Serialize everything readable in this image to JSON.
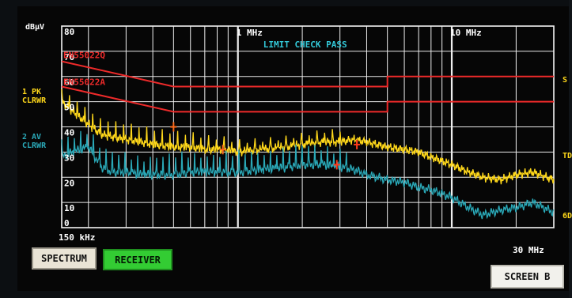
{
  "axis": {
    "unit": "dBμV",
    "x_start": "150 kHz",
    "x_end": "30 MHz",
    "y_ticks": [
      "80",
      "70",
      "60",
      "50",
      "40",
      "30",
      "20",
      "10",
      "0"
    ],
    "x_tick_labels": [
      {
        "freq_mhz": 1,
        "text": "1 MHz"
      },
      {
        "freq_mhz": 10,
        "text": "10 MHz"
      }
    ],
    "x_range_mhz": [
      0.15,
      30
    ],
    "y_range": [
      0,
      80
    ],
    "x_scale": "log",
    "grid": true
  },
  "status": {
    "text": "LIMIT CHECK  PASS",
    "color": "#33c8d8"
  },
  "limits": [
    {
      "name": "EN55022Q",
      "color": "#ee2a2a",
      "points": [
        [
          0.15,
          66
        ],
        [
          0.5,
          56
        ],
        [
          5,
          56
        ],
        [
          5,
          60
        ],
        [
          30,
          60
        ]
      ]
    },
    {
      "name": "EN55022A",
      "color": "#ee2a2a",
      "points": [
        [
          0.15,
          56
        ],
        [
          0.5,
          46
        ],
        [
          5,
          46
        ],
        [
          5,
          50
        ],
        [
          30,
          50
        ]
      ]
    }
  ],
  "traces": [
    {
      "label_line1": "1 PK",
      "label_line2": "CLRWR",
      "color": "#ffd81a"
    },
    {
      "label_line1": "2 AV",
      "label_line2": "CLRWR",
      "color": "#2aa9b8"
    }
  ],
  "side_marks": [
    "S",
    "TD",
    "6D"
  ],
  "buttons": {
    "spectrum": "SPECTRUM",
    "receiver": "RECEIVER",
    "screen_b": "SCREEN B"
  },
  "chart_data": {
    "type": "line",
    "title": "LIMIT CHECK  PASS",
    "xlabel": "",
    "ylabel": "dBμV",
    "x_scale": "log",
    "xlim": [
      0.15,
      30
    ],
    "ylim": [
      0,
      80
    ],
    "grid": true,
    "series": [
      {
        "name": "1 PK CLRWR",
        "color": "#ffd81a",
        "x": [
          0.15,
          0.17,
          0.2,
          0.23,
          0.26,
          0.3,
          0.35,
          0.4,
          0.5,
          0.6,
          0.7,
          0.85,
          1.0,
          1.3,
          1.7,
          2.0,
          2.5,
          3.0,
          3.5,
          4.0,
          5.0,
          6.0,
          7.0,
          8.0,
          10.0,
          12.0,
          14.0,
          17.0,
          20.0,
          24.0,
          30.0
        ],
        "y": [
          50,
          46,
          41,
          37,
          36,
          35,
          34,
          33,
          32,
          32,
          31,
          31,
          30,
          31,
          32,
          33,
          34,
          34,
          35,
          34,
          32,
          31,
          30,
          28,
          25,
          22,
          20,
          19,
          21,
          22,
          19
        ]
      },
      {
        "name": "2 AV CLRWR",
        "color": "#2aa9b8",
        "x": [
          0.15,
          0.17,
          0.2,
          0.23,
          0.26,
          0.3,
          0.35,
          0.4,
          0.5,
          0.6,
          0.7,
          0.85,
          1.0,
          1.3,
          1.7,
          2.0,
          2.5,
          3.0,
          3.5,
          4.0,
          5.0,
          6.0,
          7.0,
          8.0,
          10.0,
          12.0,
          14.0,
          17.0,
          20.0,
          24.0,
          30.0
        ],
        "y": [
          28,
          30,
          32,
          24,
          22,
          22,
          21,
          21,
          21,
          22,
          22,
          22,
          22,
          23,
          24,
          25,
          25,
          24,
          23,
          21,
          19,
          18,
          16,
          15,
          12,
          8,
          5,
          7,
          8,
          10,
          6
        ]
      }
    ],
    "markers": [
      {
        "x": 0.5,
        "y": 40,
        "color": "#ff6a1a"
      },
      {
        "x": 0.85,
        "y": 31,
        "color": "#ff6a1a"
      },
      {
        "x": 2.9,
        "y": 25,
        "color": "#ff3a1a"
      },
      {
        "x": 3.6,
        "y": 33,
        "color": "#ff3a1a"
      }
    ]
  }
}
